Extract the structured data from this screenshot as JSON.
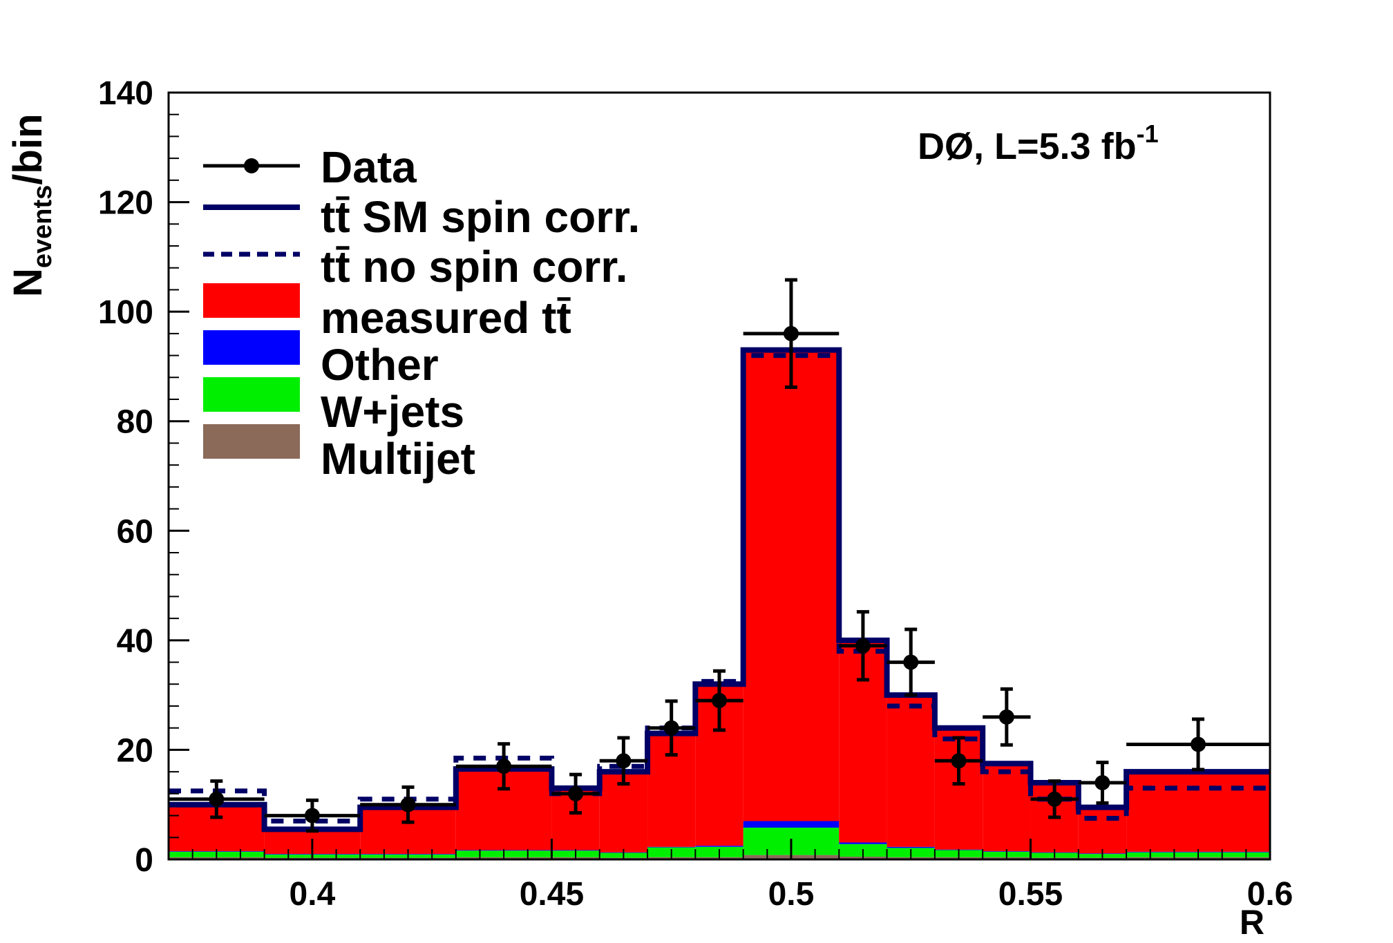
{
  "chart_data": {
    "type": "bar",
    "xlabel": "R",
    "ylabel": "N",
    "ylabel_sub": "events",
    "ylabel_suffix": "/bin",
    "xlim": [
      0.37,
      0.6
    ],
    "ylim": [
      0,
      140
    ],
    "x_ticks": [
      "0.4",
      "0.45",
      "0.5",
      "0.55",
      "0.6"
    ],
    "x_tick_values": [
      0.4,
      0.45,
      0.5,
      0.55,
      0.6
    ],
    "y_ticks": [
      "0",
      "20",
      "40",
      "60",
      "80",
      "100",
      "120",
      "140"
    ],
    "y_tick_values": [
      0,
      20,
      40,
      60,
      80,
      100,
      120,
      140
    ],
    "annotation": {
      "main": "DØ, L=5.3 fb",
      "sup": "-1"
    },
    "legend_position": "top-left",
    "bin_edges": [
      0.37,
      0.39,
      0.41,
      0.43,
      0.45,
      0.46,
      0.47,
      0.48,
      0.49,
      0.51,
      0.52,
      0.53,
      0.54,
      0.55,
      0.56,
      0.57,
      0.6
    ],
    "series": [
      {
        "name": "Multijet",
        "kind": "stack",
        "color": "#8b6a5a",
        "values": [
          0.4,
          0.3,
          0.3,
          0.4,
          0.4,
          0.3,
          0.4,
          0.4,
          0.8,
          0.5,
          0.4,
          0.4,
          0.4,
          0.3,
          0.3,
          0.4
        ]
      },
      {
        "name": "W+jets",
        "kind": "stack",
        "color": "#00ee00",
        "values": [
          1.0,
          0.6,
          0.6,
          1.2,
          1.2,
          0.9,
          1.8,
          1.9,
          5.0,
          2.3,
          1.7,
          1.3,
          1.0,
          0.9,
          0.7,
          0.9
        ]
      },
      {
        "name": "Other",
        "kind": "stack",
        "color": "#0000ff",
        "values": [
          0.1,
          0.1,
          0.1,
          0.1,
          0.1,
          0.1,
          0.1,
          0.2,
          1.2,
          0.3,
          0.2,
          0.1,
          0.1,
          0.1,
          0.1,
          0.1
        ]
      },
      {
        "name": "measured tt̄",
        "kind": "stack",
        "color": "#ff0000",
        "values": [
          8.5,
          4.5,
          8.5,
          14.8,
          11.4,
          14.7,
          20.7,
          29.5,
          86.0,
          37.0,
          28.0,
          22.5,
          16.0,
          12.5,
          8.5,
          14.6
        ]
      },
      {
        "name": "tt̄ SM spin corr.",
        "kind": "line",
        "color": "#000066",
        "values": [
          10,
          5.5,
          9.5,
          16.5,
          13,
          16,
          23,
          32,
          93,
          40,
          30,
          24,
          17.5,
          14,
          9.5,
          16
        ]
      },
      {
        "name": "tt̄ no spin corr.",
        "kind": "dashed",
        "color": "#000066",
        "values": [
          12.5,
          7,
          11,
          18.5,
          12,
          17,
          24,
          32.5,
          92,
          38,
          28,
          22,
          16,
          11,
          7.5,
          13
        ]
      }
    ],
    "data_points": {
      "name": "Data",
      "x": [
        0.38,
        0.4,
        0.42,
        0.44,
        0.455,
        0.465,
        0.475,
        0.485,
        0.5,
        0.515,
        0.525,
        0.535,
        0.545,
        0.555,
        0.565,
        0.585
      ],
      "y": [
        11,
        8,
        10,
        17,
        12,
        18,
        24,
        29,
        96,
        39,
        36,
        18,
        26,
        11,
        14,
        21
      ],
      "yerr": [
        3.3,
        2.8,
        3.2,
        4.1,
        3.5,
        4.2,
        4.9,
        5.4,
        9.8,
        6.2,
        6.0,
        4.2,
        5.1,
        3.3,
        3.7,
        4.6
      ]
    },
    "legend": [
      {
        "label": "Data",
        "style": "marker"
      },
      {
        "label": "tt̄ SM spin corr.",
        "style": "line"
      },
      {
        "label": "tt̄ no spin corr.",
        "style": "dashed"
      },
      {
        "label": "measured tt̄",
        "style": "box",
        "color": "#ff0000"
      },
      {
        "label": "Other",
        "style": "box",
        "color": "#0000ff"
      },
      {
        "label": "W+jets",
        "style": "box",
        "color": "#00ee00"
      },
      {
        "label": "Multijet",
        "style": "box",
        "color": "#8b6a5a"
      }
    ]
  }
}
